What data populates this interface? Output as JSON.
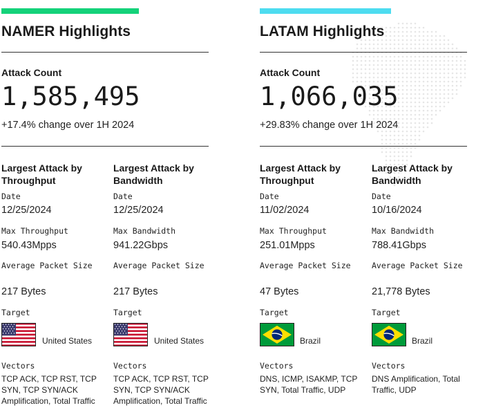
{
  "colors": {
    "namer_accent": "#14d27a",
    "latam_accent": "#4ddcf0"
  },
  "regions": [
    {
      "title": "NAMER Highlights",
      "attack_count_label": "Attack Count",
      "attack_count": "1,585,495",
      "change": "+17.4% change over 1H 2024",
      "columns": [
        {
          "title": "Largest Attack by Throughput",
          "date_label": "Date",
          "date": "12/25/2024",
          "max_label": "Max Throughput",
          "max_value": "540.43Mpps",
          "avg_label": "Average Packet Size",
          "avg_value": "217 Bytes",
          "target_label": "Target",
          "target_country": "United States",
          "flag": "us-flag",
          "vectors_label": "Vectors",
          "vectors": "TCP ACK, TCP RST, TCP SYN, TCP SYN/ACK Amplification, Total Traffic"
        },
        {
          "title": "Largest Attack by Bandwidth",
          "date_label": "Date",
          "date": "12/25/2024",
          "max_label": "Max Bandwidth",
          "max_value": "941.22Gbps",
          "avg_label": "Average Packet Size",
          "avg_value": "217 Bytes",
          "target_label": "Target",
          "target_country": "United States",
          "flag": "us-flag",
          "vectors_label": "Vectors",
          "vectors": "TCP ACK, TCP RST, TCP SYN, TCP SYN/ACK Amplification, Total Traffic"
        }
      ]
    },
    {
      "title": "LATAM Highlights",
      "attack_count_label": "Attack Count",
      "attack_count": "1,066,035",
      "change": "+29.83% change over 1H 2024",
      "columns": [
        {
          "title": "Largest Attack by Throughput",
          "date_label": "Date",
          "date": "11/02/2024",
          "max_label": "Max Throughput",
          "max_value": "251.01Mpps",
          "avg_label": "Average Packet Size",
          "avg_value": "47 Bytes",
          "target_label": "Target",
          "target_country": "Brazil",
          "flag": "brazil-flag",
          "vectors_label": "Vectors",
          "vectors": "DNS, ICMP, ISAKMP, TCP SYN, Total Traffic, UDP"
        },
        {
          "title": "Largest Attack by Bandwidth",
          "date_label": "Date",
          "date": "10/16/2024",
          "max_label": "Max Bandwidth",
          "max_value": "788.41Gbps",
          "avg_label": "Average Packet Size",
          "avg_value": "21,778 Bytes",
          "target_label": "Target",
          "target_country": "Brazil",
          "flag": "brazil-flag",
          "vectors_label": "Vectors",
          "vectors": "DNS Amplification, Total Traffic, UDP"
        }
      ]
    }
  ]
}
